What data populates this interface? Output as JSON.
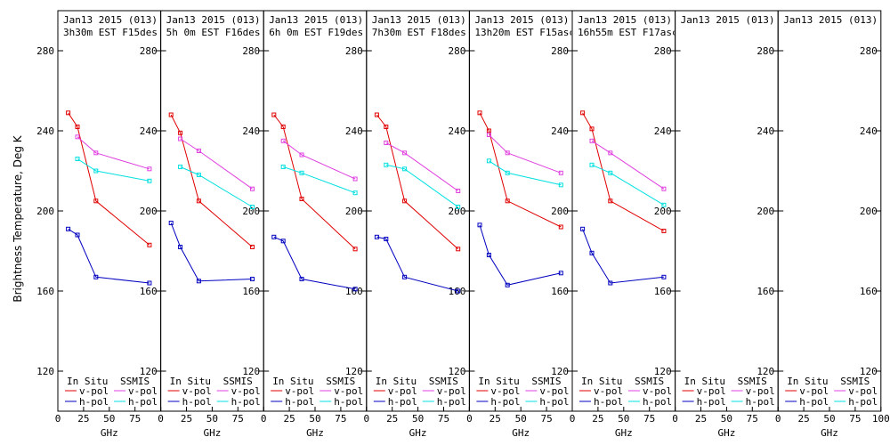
{
  "chart_data": {
    "type": "line",
    "ylabel": "Brightness Temperature, Deg K",
    "xlabel": "GHz",
    "ylim": [
      100,
      300
    ],
    "xlim": [
      0,
      100
    ],
    "yticks": [
      120,
      160,
      200,
      240,
      280
    ],
    "xticks": [
      0,
      25,
      50,
      75,
      100
    ],
    "legend": {
      "left_title": "In Situ",
      "right_title": "SSMIS",
      "vpol_label": "v-pol",
      "hpol_label": "h-pol"
    },
    "colors": {
      "insitu_v": "#e00000",
      "insitu_h": "#0000c0",
      "ssmis_v": "#e040e0",
      "ssmis_h": "#00e0e0"
    },
    "panels": [
      {
        "date": "Jan13 2015 (013)",
        "time": "3h30m EST F15des",
        "series": [
          {
            "name": "In Situ v-pol",
            "x": [
              10,
              19,
              37,
              89
            ],
            "y": [
              249,
              242,
              205,
              183
            ]
          },
          {
            "name": "In Situ h-pol",
            "x": [
              10,
              19,
              37,
              89
            ],
            "y": [
              191,
              188,
              167,
              164
            ]
          },
          {
            "name": "SSMIS v-pol",
            "x": [
              19,
              37,
              89
            ],
            "y": [
              237,
              229,
              221
            ]
          },
          {
            "name": "SSMIS h-pol",
            "x": [
              19,
              37,
              89
            ],
            "y": [
              226,
              220,
              215
            ]
          }
        ]
      },
      {
        "date": "Jan13 2015 (013)",
        "time": "5h 0m EST F16des",
        "series": [
          {
            "name": "In Situ v-pol",
            "x": [
              10,
              19,
              37,
              89
            ],
            "y": [
              248,
              239,
              205,
              182
            ]
          },
          {
            "name": "In Situ h-pol",
            "x": [
              10,
              19,
              37,
              89
            ],
            "y": [
              194,
              182,
              165,
              166
            ]
          },
          {
            "name": "SSMIS v-pol",
            "x": [
              19,
              37,
              89
            ],
            "y": [
              236,
              230,
              211
            ]
          },
          {
            "name": "SSMIS h-pol",
            "x": [
              19,
              37,
              89
            ],
            "y": [
              222,
              218,
              202
            ]
          }
        ]
      },
      {
        "date": "Jan13 2015 (013)",
        "time": "6h 0m EST F19des",
        "series": [
          {
            "name": "In Situ v-pol",
            "x": [
              10,
              19,
              37,
              89
            ],
            "y": [
              248,
              242,
              206,
              181
            ]
          },
          {
            "name": "In Situ h-pol",
            "x": [
              10,
              19,
              37,
              89
            ],
            "y": [
              187,
              185,
              166,
              161
            ]
          },
          {
            "name": "SSMIS v-pol",
            "x": [
              19,
              37,
              89
            ],
            "y": [
              235,
              228,
              216
            ]
          },
          {
            "name": "SSMIS h-pol",
            "x": [
              19,
              37,
              89
            ],
            "y": [
              222,
              219,
              209
            ]
          }
        ]
      },
      {
        "date": "Jan13 2015 (013)",
        "time": "7h30m EST F18des",
        "series": [
          {
            "name": "In Situ v-pol",
            "x": [
              10,
              19,
              37,
              89
            ],
            "y": [
              248,
              242,
              205,
              181
            ]
          },
          {
            "name": "In Situ h-pol",
            "x": [
              10,
              19,
              37,
              89
            ],
            "y": [
              187,
              186,
              167,
              160
            ]
          },
          {
            "name": "SSMIS v-pol",
            "x": [
              19,
              37,
              89
            ],
            "y": [
              234,
              229,
              210
            ]
          },
          {
            "name": "SSMIS h-pol",
            "x": [
              19,
              37,
              89
            ],
            "y": [
              223,
              221,
              202
            ]
          }
        ]
      },
      {
        "date": "Jan13 2015 (013)",
        "time": "13h20m EST F15asc",
        "series": [
          {
            "name": "In Situ v-pol",
            "x": [
              10,
              19,
              37,
              89
            ],
            "y": [
              249,
              240,
              205,
              192
            ]
          },
          {
            "name": "In Situ h-pol",
            "x": [
              10,
              19,
              37,
              89
            ],
            "y": [
              193,
              178,
              163,
              169
            ]
          },
          {
            "name": "SSMIS v-pol",
            "x": [
              19,
              37,
              89
            ],
            "y": [
              238,
              229,
              219
            ]
          },
          {
            "name": "SSMIS h-pol",
            "x": [
              19,
              37,
              89
            ],
            "y": [
              225,
              219,
              213
            ]
          }
        ]
      },
      {
        "date": "Jan13 2015 (013)",
        "time": "16h55m EST F17asc",
        "series": [
          {
            "name": "In Situ v-pol",
            "x": [
              10,
              19,
              37,
              89
            ],
            "y": [
              249,
              241,
              205,
              190
            ]
          },
          {
            "name": "In Situ h-pol",
            "x": [
              10,
              19,
              37,
              89
            ],
            "y": [
              191,
              179,
              164,
              167
            ]
          },
          {
            "name": "SSMIS v-pol",
            "x": [
              19,
              37,
              89
            ],
            "y": [
              235,
              229,
              211
            ]
          },
          {
            "name": "SSMIS h-pol",
            "x": [
              19,
              37,
              89
            ],
            "y": [
              223,
              219,
              203
            ]
          }
        ]
      },
      {
        "date": "Jan13 2015 (013)",
        "time": "",
        "series": []
      },
      {
        "date": "Jan13 2015 (013)",
        "time": "",
        "series": []
      }
    ]
  }
}
